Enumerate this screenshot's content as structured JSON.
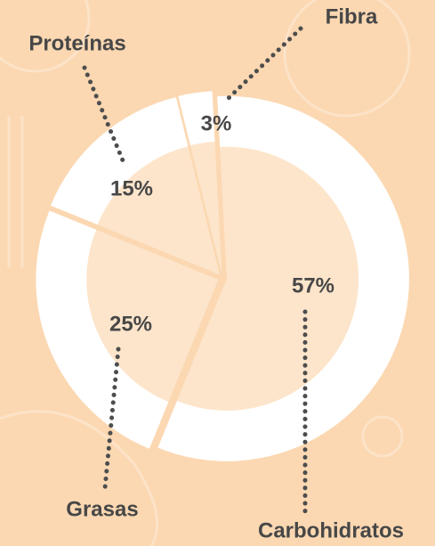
{
  "chart_data": {
    "type": "pie",
    "categories": [
      "Carbohidratos",
      "Grasas",
      "Proteínas",
      "Fibra"
    ],
    "values": [
      57,
      25,
      15,
      3
    ],
    "value_labels": [
      "57%",
      "25%",
      "15%",
      "3%"
    ],
    "color": "#ffffff"
  }
}
